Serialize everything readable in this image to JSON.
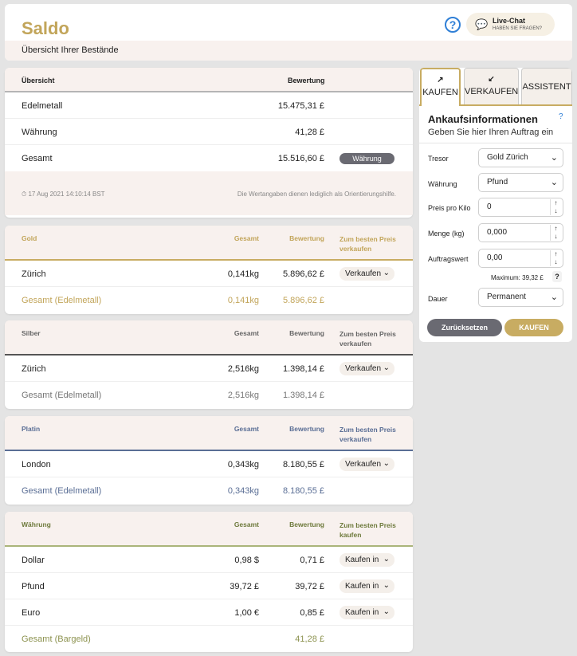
{
  "header": {
    "title": "Saldo",
    "help_glyph": "?",
    "chat_title": "Live-Chat",
    "chat_subtitle": "HABEN SIE FRAGEN?",
    "subtitle": "Übersicht Ihrer Bestände"
  },
  "overview": {
    "col_label": "Übersicht",
    "col_value": "Bewertung",
    "rows": [
      {
        "label": "Edelmetall",
        "value": "15.475,31 £"
      },
      {
        "label": "Währung",
        "value": "41,28 £"
      },
      {
        "label": "Gesamt",
        "value": "15.516,60 £",
        "button": "Währung"
      }
    ],
    "timestamp": "17 Aug 2021 14:10:14 BST",
    "note": "Die Wertangaben dienen lediglich als Orientierungshilfe."
  },
  "metals": [
    {
      "name": "Gold",
      "col_total": "Gesamt",
      "col_value": "Bewertung",
      "col_action": "Zum besten Preis verkaufen",
      "rows": [
        {
          "loc": "Zürich",
          "qty": "0,141kg",
          "value": "5.896,62 £",
          "action": "Verkaufen"
        }
      ],
      "total": {
        "label": "Gesamt (Edelmetall)",
        "qty": "0,141kg",
        "value": "5.896,62 £"
      }
    },
    {
      "name": "Silber",
      "col_total": "Gesamt",
      "col_value": "Bewertung",
      "col_action": "Zum besten Preis verkaufen",
      "rows": [
        {
          "loc": "Zürich",
          "qty": "2,516kg",
          "value": "1.398,14 £",
          "action": "Verkaufen"
        }
      ],
      "total": {
        "label": "Gesamt (Edelmetall)",
        "qty": "2,516kg",
        "value": "1.398,14 £"
      }
    },
    {
      "name": "Platin",
      "col_total": "Gesamt",
      "col_value": "Bewertung",
      "col_action": "Zum besten Preis verkaufen",
      "rows": [
        {
          "loc": "London",
          "qty": "0,343kg",
          "value": "8.180,55 £",
          "action": "Verkaufen"
        }
      ],
      "total": {
        "label": "Gesamt (Edelmetall)",
        "qty": "0,343kg",
        "value": "8.180,55 £"
      }
    }
  ],
  "currency": {
    "name": "Währung",
    "col_total": "Gesamt",
    "col_value": "Bewertung",
    "col_action": "Zum besten Preis kaufen",
    "rows": [
      {
        "loc": "Dollar",
        "qty": "0,98 $",
        "value": "0,71 £",
        "action": "Kaufen in"
      },
      {
        "loc": "Pfund",
        "qty": "39,72 £",
        "value": "39,72 £",
        "action": "Kaufen in"
      },
      {
        "loc": "Euro",
        "qty": "1,00 €",
        "value": "0,85 £",
        "action": "Kaufen in"
      }
    ],
    "total": {
      "label": "Gesamt (Bargeld)",
      "value": "41,28 £"
    }
  },
  "panel": {
    "tabs": [
      {
        "icon": "↗",
        "label": "KAUFEN"
      },
      {
        "icon": "↙",
        "label": "VERKAUFEN"
      },
      {
        "label": "ASSISTENT"
      }
    ],
    "heading": "Ankaufsinformationen",
    "help": "?",
    "subheading": "Geben Sie hier Ihren Auftrag ein",
    "fields": {
      "tresor": {
        "label": "Tresor",
        "value": "Gold Zürich"
      },
      "waehrung": {
        "label": "Währung",
        "value": "Pfund"
      },
      "preis": {
        "label": "Preis pro Kilo",
        "value": "0"
      },
      "menge": {
        "label": "Menge (kg)",
        "value": "0,000"
      },
      "auftrag": {
        "label": "Auftragswert",
        "value": "0,00"
      },
      "dauer": {
        "label": "Dauer",
        "value": "Permanent"
      }
    },
    "maximum": "Maximum: 39,32 £",
    "max_help": "?",
    "reset": "Zurücksetzen",
    "buy": "KAUFEN"
  },
  "colors": {
    "gold": "#c2a55a",
    "platin": "#5a6e95",
    "currency": "#8d9350",
    "accent_blue": "#2f7fd6"
  }
}
